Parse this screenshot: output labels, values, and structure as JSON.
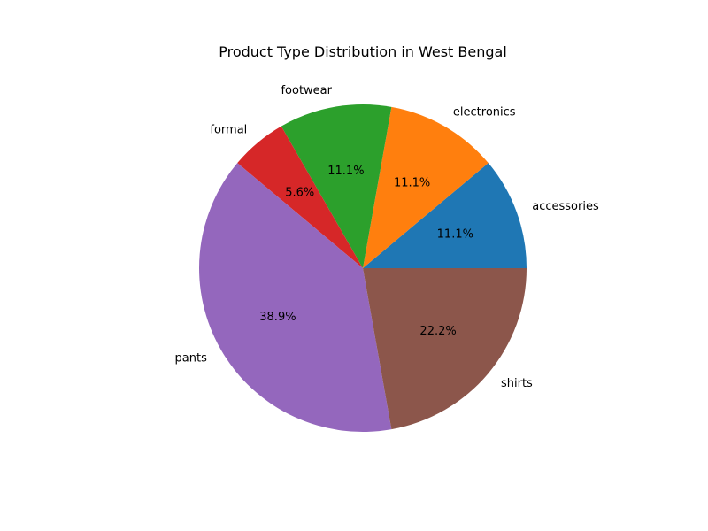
{
  "chart_data": {
    "type": "pie",
    "title": "Product Type Distribution in West Bengal",
    "slices": [
      {
        "label": "accessories",
        "value": 11.1,
        "pct_label": "11.1%",
        "color": "#1f77b4"
      },
      {
        "label": "electronics",
        "value": 11.1,
        "pct_label": "11.1%",
        "color": "#ff7f0e"
      },
      {
        "label": "footwear",
        "value": 11.1,
        "pct_label": "11.1%",
        "color": "#2ca02c"
      },
      {
        "label": "formal",
        "value": 5.6,
        "pct_label": "5.6%",
        "color": "#d62728"
      },
      {
        "label": "pants",
        "value": 38.9,
        "pct_label": "38.9%",
        "color": "#9467bd"
      },
      {
        "label": "shirts",
        "value": 22.2,
        "pct_label": "22.2%",
        "color": "#8c564b"
      }
    ],
    "start_angle_deg": 0,
    "direction": "counterclockwise",
    "legend": "none"
  }
}
